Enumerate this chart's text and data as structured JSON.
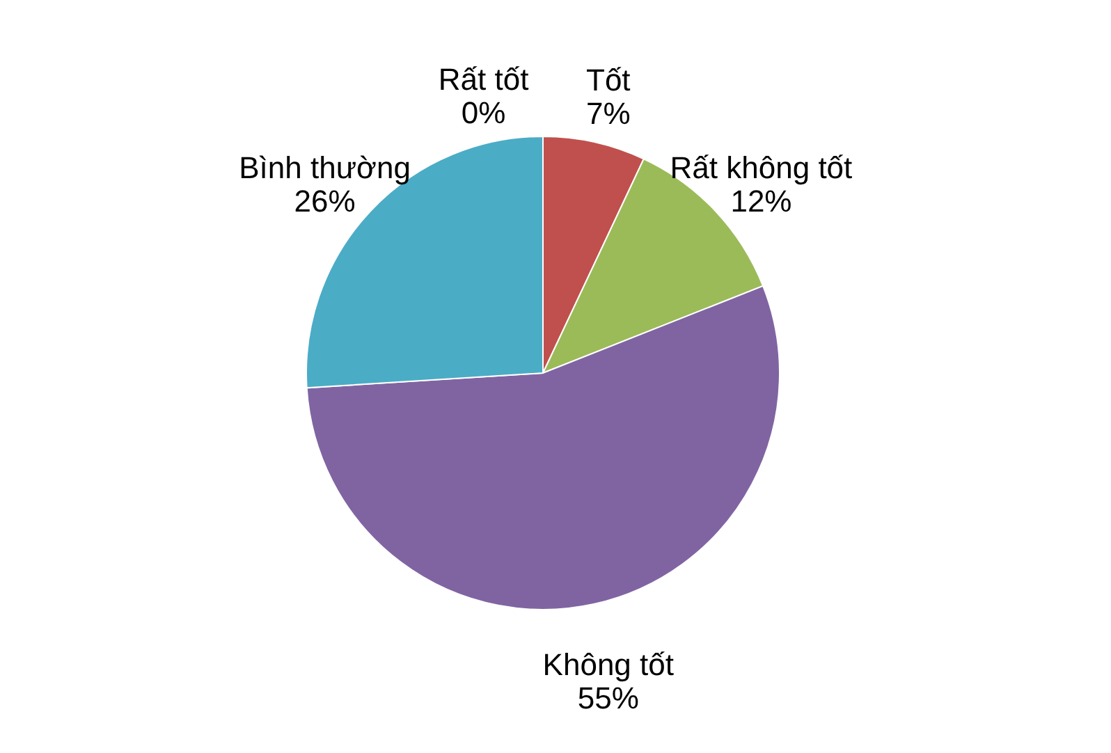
{
  "chart_data": {
    "type": "pie",
    "categories": [
      "Rất tốt",
      "Tốt",
      "Rất không tốt",
      "Không tốt",
      "Bình thường"
    ],
    "values": [
      0,
      7,
      12,
      55,
      26
    ],
    "colors": [
      "#4f81bd",
      "#c0504d",
      "#9bbb59",
      "#8064a2",
      "#4bacc6"
    ],
    "value_labels": [
      "0%",
      "7%",
      "12%",
      "55%",
      "26%"
    ]
  }
}
